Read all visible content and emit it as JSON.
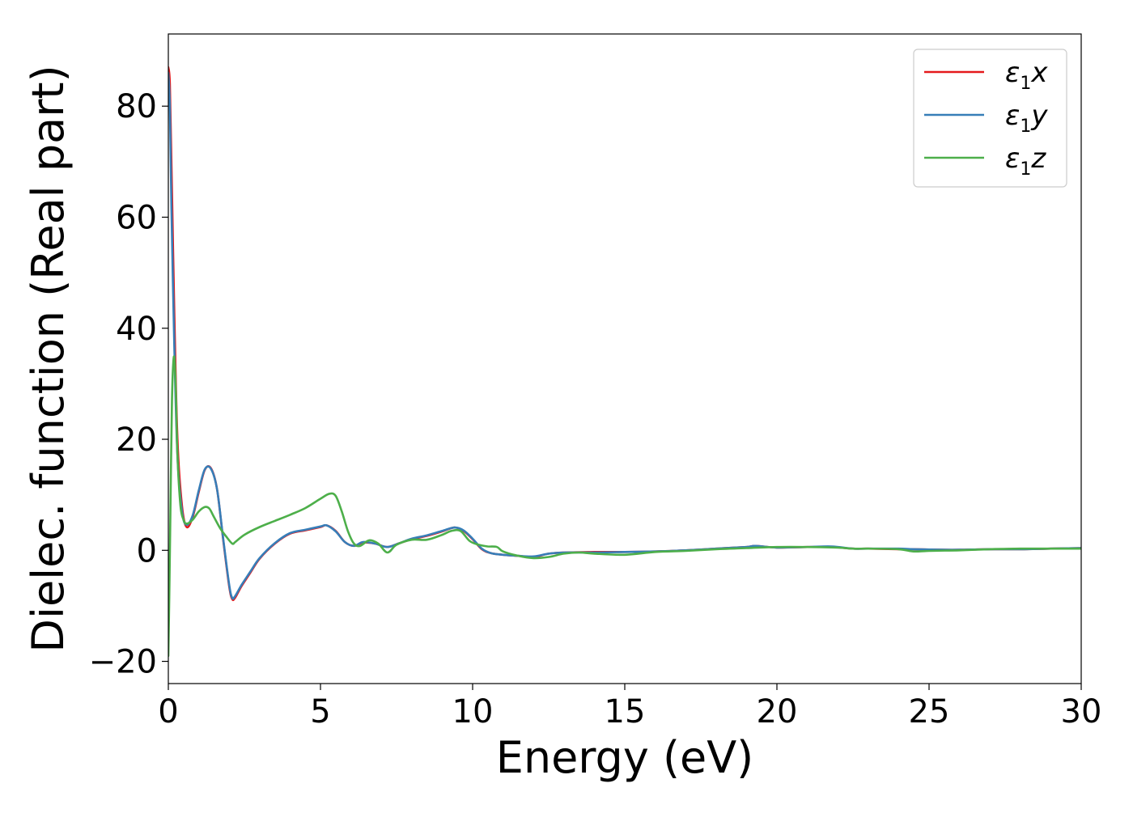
{
  "chart_data": {
    "type": "line",
    "title": "",
    "xlabel": "Energy (eV)",
    "ylabel": "Dielec. function (Real part)",
    "xlim": [
      0,
      30
    ],
    "ylim": [
      -24,
      93
    ],
    "xticks": [
      0,
      5,
      10,
      15,
      20,
      25,
      30
    ],
    "xtick_labels": [
      "0",
      "5",
      "10",
      "15",
      "20",
      "25",
      "30"
    ],
    "yticks": [
      -20,
      0,
      20,
      40,
      60,
      80
    ],
    "ytick_labels": [
      "−20",
      "0",
      "20",
      "40",
      "60",
      "80"
    ],
    "grid": false,
    "legend_position": "upper right",
    "series": [
      {
        "name": "ε₁x",
        "legend_main": "ε",
        "legend_sub": "1",
        "legend_suffix": "x",
        "color": "#e41a1c",
        "x": [
          0.0,
          0.05,
          0.1,
          0.2,
          0.3,
          0.45,
          0.6,
          0.8,
          1.0,
          1.2,
          1.4,
          1.6,
          1.8,
          2.0,
          2.1,
          2.2,
          2.4,
          2.7,
          3.0,
          3.5,
          4.0,
          4.5,
          5.0,
          5.2,
          5.5,
          5.8,
          6.1,
          6.4,
          6.8,
          7.2,
          7.6,
          8.0,
          8.5,
          9.0,
          9.4,
          9.7,
          10.0,
          10.3,
          10.6,
          11.0,
          11.5,
          12.0,
          12.5,
          13.0,
          14.0,
          15.0,
          16.0,
          17.0,
          18.0,
          19.0,
          19.3,
          20.0,
          21.0,
          21.8,
          22.5,
          23.0,
          24.0,
          24.5,
          25.5,
          26.0,
          27.0,
          28.0,
          29.0,
          30.0
        ],
        "y": [
          87.0,
          84.0,
          70.0,
          42.0,
          20.0,
          8.0,
          4.2,
          6.0,
          10.5,
          14.5,
          14.8,
          11.0,
          2.0,
          -6.5,
          -8.8,
          -8.5,
          -6.5,
          -4.0,
          -1.5,
          1.2,
          3.0,
          3.6,
          4.2,
          4.5,
          3.5,
          1.5,
          0.8,
          1.4,
          1.2,
          0.6,
          1.3,
          2.0,
          2.6,
          3.4,
          4.1,
          3.5,
          2.0,
          0.2,
          -0.5,
          -0.8,
          -1.0,
          -1.2,
          -0.6,
          -0.4,
          -0.3,
          -0.3,
          -0.2,
          0.0,
          0.3,
          0.6,
          0.8,
          0.5,
          0.6,
          0.6,
          0.3,
          0.3,
          0.2,
          0.2,
          0.1,
          0.1,
          0.2,
          0.2,
          0.3,
          0.4
        ]
      },
      {
        "name": "ε₁y",
        "legend_main": "ε",
        "legend_sub": "1",
        "legend_suffix": "y",
        "color": "#377eb8",
        "x": [
          0.0,
          0.05,
          0.1,
          0.2,
          0.3,
          0.45,
          0.6,
          0.8,
          1.0,
          1.2,
          1.4,
          1.6,
          1.8,
          2.0,
          2.1,
          2.2,
          2.4,
          2.7,
          3.0,
          3.5,
          4.0,
          4.5,
          5.0,
          5.2,
          5.5,
          5.8,
          6.1,
          6.4,
          6.8,
          7.2,
          7.6,
          8.0,
          8.5,
          9.0,
          9.4,
          9.7,
          10.0,
          10.3,
          10.6,
          11.0,
          11.5,
          12.0,
          12.5,
          13.0,
          14.0,
          15.0,
          16.0,
          17.0,
          18.0,
          19.0,
          19.3,
          20.0,
          21.0,
          21.8,
          22.5,
          23.0,
          24.0,
          24.5,
          25.5,
          26.0,
          27.0,
          28.0,
          29.0,
          30.0
        ],
        "y": [
          86.0,
          80.0,
          62.0,
          36.0,
          17.0,
          7.0,
          4.6,
          6.3,
          10.8,
          14.6,
          14.7,
          11.0,
          2.2,
          -6.2,
          -8.6,
          -8.2,
          -6.3,
          -3.8,
          -1.4,
          1.3,
          3.1,
          3.7,
          4.3,
          4.5,
          3.4,
          1.5,
          0.8,
          1.5,
          1.2,
          0.6,
          1.3,
          2.1,
          2.7,
          3.5,
          4.1,
          3.6,
          2.1,
          0.3,
          -0.5,
          -0.8,
          -1.0,
          -1.1,
          -0.6,
          -0.4,
          -0.4,
          -0.3,
          -0.2,
          0.0,
          0.3,
          0.6,
          0.8,
          0.5,
          0.6,
          0.7,
          0.3,
          0.3,
          0.3,
          0.2,
          0.1,
          0.1,
          0.2,
          0.2,
          0.3,
          0.4
        ]
      },
      {
        "name": "ε₁z",
        "legend_main": "ε",
        "legend_sub": "1",
        "legend_suffix": "z",
        "color": "#4daf4a",
        "x": [
          0.0,
          0.04,
          0.08,
          0.12,
          0.16,
          0.2,
          0.25,
          0.3,
          0.4,
          0.5,
          0.6,
          0.8,
          1.0,
          1.2,
          1.35,
          1.5,
          1.7,
          1.9,
          2.1,
          2.2,
          2.5,
          3.0,
          3.5,
          4.0,
          4.5,
          5.0,
          5.3,
          5.5,
          5.7,
          5.9,
          6.1,
          6.3,
          6.6,
          6.9,
          7.2,
          7.5,
          8.0,
          8.5,
          9.0,
          9.3,
          9.6,
          9.9,
          10.2,
          10.5,
          10.8,
          11.0,
          11.5,
          12.0,
          12.5,
          13.0,
          13.5,
          14.0,
          15.0,
          16.0,
          17.0,
          18.0,
          19.0,
          20.0,
          21.0,
          22.0,
          22.5,
          23.0,
          24.0,
          24.5,
          25.0,
          26.0,
          27.0,
          28.0,
          29.0,
          30.0
        ],
        "y": [
          -19.0,
          -5.0,
          12.0,
          27.0,
          33.5,
          34.5,
          28.0,
          17.0,
          8.0,
          5.5,
          4.8,
          5.5,
          7.0,
          7.8,
          7.5,
          6.0,
          4.0,
          2.5,
          1.2,
          1.5,
          2.8,
          4.2,
          5.3,
          6.4,
          7.6,
          9.3,
          10.2,
          9.8,
          7.0,
          3.5,
          1.2,
          0.8,
          1.8,
          1.2,
          -0.4,
          1.0,
          1.9,
          1.9,
          2.8,
          3.5,
          3.5,
          1.7,
          1.0,
          0.7,
          0.6,
          -0.2,
          -1.0,
          -1.4,
          -1.2,
          -0.6,
          -0.4,
          -0.6,
          -0.8,
          -0.3,
          -0.1,
          0.2,
          0.4,
          0.6,
          0.6,
          0.5,
          0.3,
          0.3,
          0.2,
          -0.2,
          -0.1,
          0.0,
          0.2,
          0.3,
          0.3,
          0.3
        ]
      }
    ]
  }
}
